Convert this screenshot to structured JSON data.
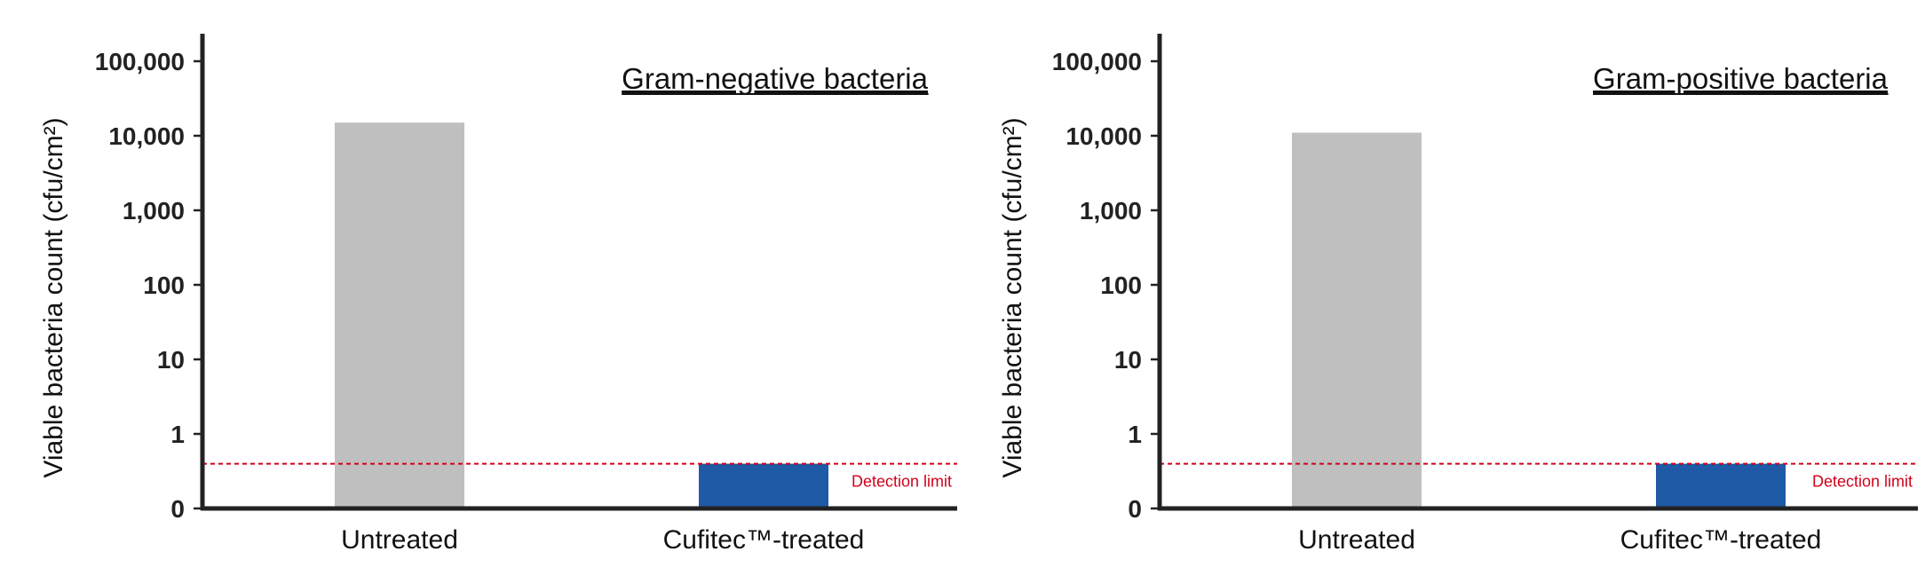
{
  "colors": {
    "untreated": "#bfbfbf",
    "treated": "#1f5aa6",
    "axis": "#222222",
    "detection": "#d0021b"
  },
  "chart_data": [
    {
      "type": "bar",
      "title": "Gram-negative bacteria",
      "ylabel": "Viable bacteria count (cfu/cm²)",
      "xlabel": "",
      "yscale": "log",
      "yticks": [
        {
          "label": "0",
          "value": 0
        },
        {
          "label": "1",
          "value": 1
        },
        {
          "label": "10",
          "value": 10
        },
        {
          "label": "100",
          "value": 100
        },
        {
          "label": "1,000",
          "value": 1000
        },
        {
          "label": "10,000",
          "value": 10000
        },
        {
          "label": "100,000",
          "value": 100000
        }
      ],
      "categories": [
        "Untreated",
        "Cufitec™-treated"
      ],
      "values": [
        15000,
        0.6
      ],
      "detection_limit": {
        "label": "Detection limit",
        "value": 0.6
      }
    },
    {
      "type": "bar",
      "title": "Gram-positive bacteria",
      "ylabel": "Viable bacteria count (cfu/cm²)",
      "xlabel": "",
      "yscale": "log",
      "yticks": [
        {
          "label": "0",
          "value": 0
        },
        {
          "label": "1",
          "value": 1
        },
        {
          "label": "10",
          "value": 10
        },
        {
          "label": "100",
          "value": 100
        },
        {
          "label": "1,000",
          "value": 1000
        },
        {
          "label": "10,000",
          "value": 10000
        },
        {
          "label": "100,000",
          "value": 100000
        }
      ],
      "categories": [
        "Untreated",
        "Cufitec™-treated"
      ],
      "values": [
        11000,
        0.6
      ],
      "detection_limit": {
        "label": "Detection limit",
        "value": 0.6
      }
    }
  ]
}
